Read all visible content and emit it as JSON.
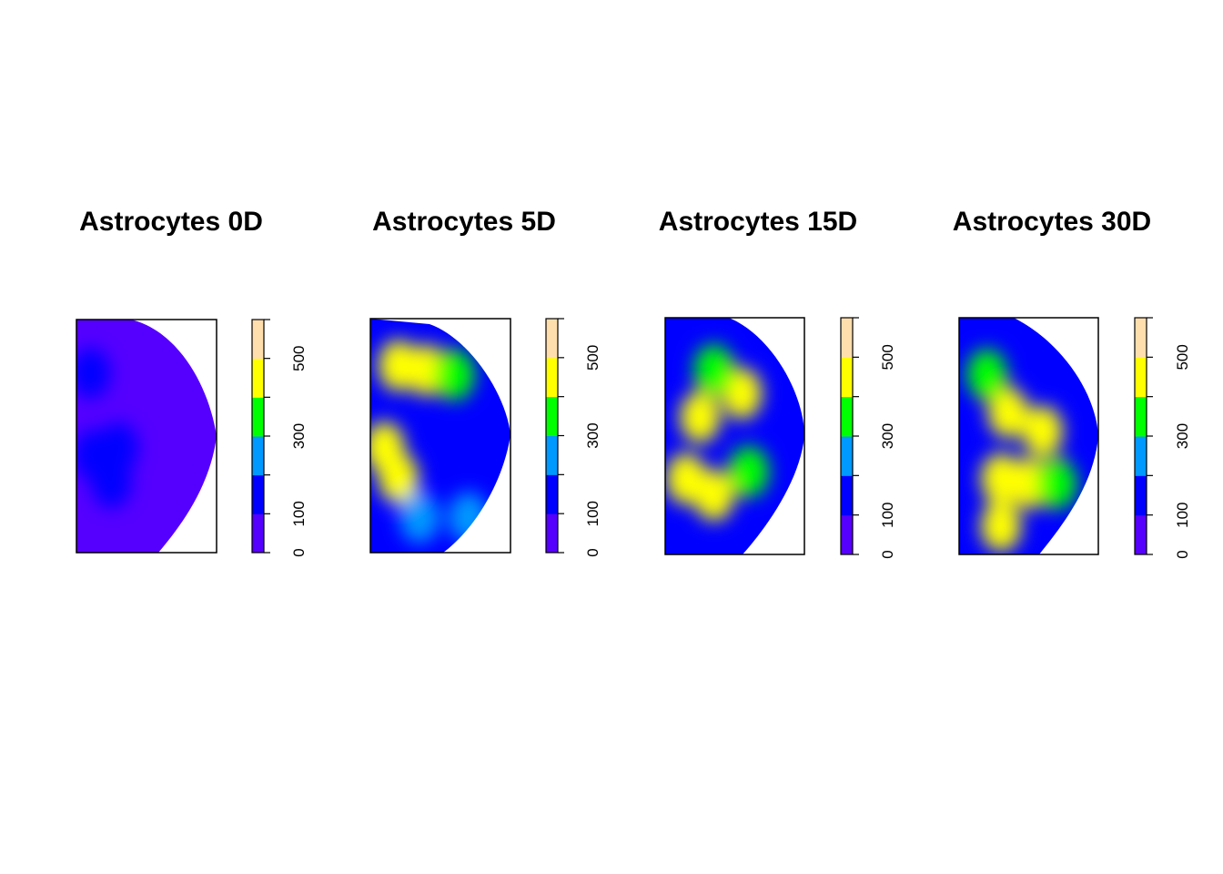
{
  "chart_data": [
    {
      "type": "heatmap",
      "title": "Astrocytes 0D",
      "colorbar": {
        "ticks": [
          0,
          100,
          300,
          500
        ],
        "ylim": [
          0,
          600
        ]
      },
      "colors": [
        "#5500ff",
        "#0000ff",
        "#0099ff",
        "#00ff00",
        "#ffff00",
        "#ffdead"
      ],
      "blobs": [
        {
          "x": 0.1,
          "y": 0.23,
          "v": 110
        },
        {
          "x": 0.3,
          "y": 0.55,
          "v": 115
        },
        {
          "x": 0.12,
          "y": 0.58,
          "v": 105
        },
        {
          "x": 0.25,
          "y": 0.7,
          "v": 100
        }
      ],
      "base_value": 45
    },
    {
      "type": "heatmap",
      "title": "Astrocytes 5D",
      "colorbar": {
        "ticks": [
          0,
          100,
          300,
          500
        ],
        "ylim": [
          0,
          600
        ]
      },
      "colors": [
        "#5500ff",
        "#0000ff",
        "#0099ff",
        "#00ff00",
        "#ffff00",
        "#ffdead"
      ],
      "blobs": [
        {
          "x": 0.2,
          "y": 0.2,
          "v": 460
        },
        {
          "x": 0.4,
          "y": 0.22,
          "v": 440
        },
        {
          "x": 0.6,
          "y": 0.24,
          "v": 380
        },
        {
          "x": 0.1,
          "y": 0.55,
          "v": 480
        },
        {
          "x": 0.2,
          "y": 0.68,
          "v": 400
        },
        {
          "x": 0.35,
          "y": 0.85,
          "v": 280
        },
        {
          "x": 0.7,
          "y": 0.85,
          "v": 250
        }
      ],
      "base_value": 110
    },
    {
      "type": "heatmap",
      "title": "Astrocytes 15D",
      "colorbar": {
        "ticks": [
          0,
          100,
          300,
          500
        ],
        "ylim": [
          0,
          600
        ]
      },
      "colors": [
        "#5500ff",
        "#0000ff",
        "#0099ff",
        "#00ff00",
        "#ffff00",
        "#ffdead"
      ],
      "blobs": [
        {
          "x": 0.25,
          "y": 0.42,
          "v": 480
        },
        {
          "x": 0.55,
          "y": 0.32,
          "v": 420
        },
        {
          "x": 0.15,
          "y": 0.68,
          "v": 460
        },
        {
          "x": 0.35,
          "y": 0.75,
          "v": 430
        },
        {
          "x": 0.6,
          "y": 0.65,
          "v": 320
        },
        {
          "x": 0.35,
          "y": 0.22,
          "v": 300
        }
      ],
      "base_value": 110
    },
    {
      "type": "heatmap",
      "title": "Astrocytes 30D",
      "colorbar": {
        "ticks": [
          0,
          100,
          300,
          500
        ],
        "ylim": [
          0,
          600
        ]
      },
      "colors": [
        "#5500ff",
        "#0000ff",
        "#0099ff",
        "#00ff00",
        "#ffff00",
        "#ffdead"
      ],
      "blobs": [
        {
          "x": 0.35,
          "y": 0.4,
          "v": 460
        },
        {
          "x": 0.6,
          "y": 0.48,
          "v": 420
        },
        {
          "x": 0.3,
          "y": 0.68,
          "v": 450
        },
        {
          "x": 0.5,
          "y": 0.7,
          "v": 470
        },
        {
          "x": 0.3,
          "y": 0.88,
          "v": 460
        },
        {
          "x": 0.7,
          "y": 0.7,
          "v": 320
        },
        {
          "x": 0.2,
          "y": 0.24,
          "v": 300
        }
      ],
      "base_value": 100
    }
  ]
}
